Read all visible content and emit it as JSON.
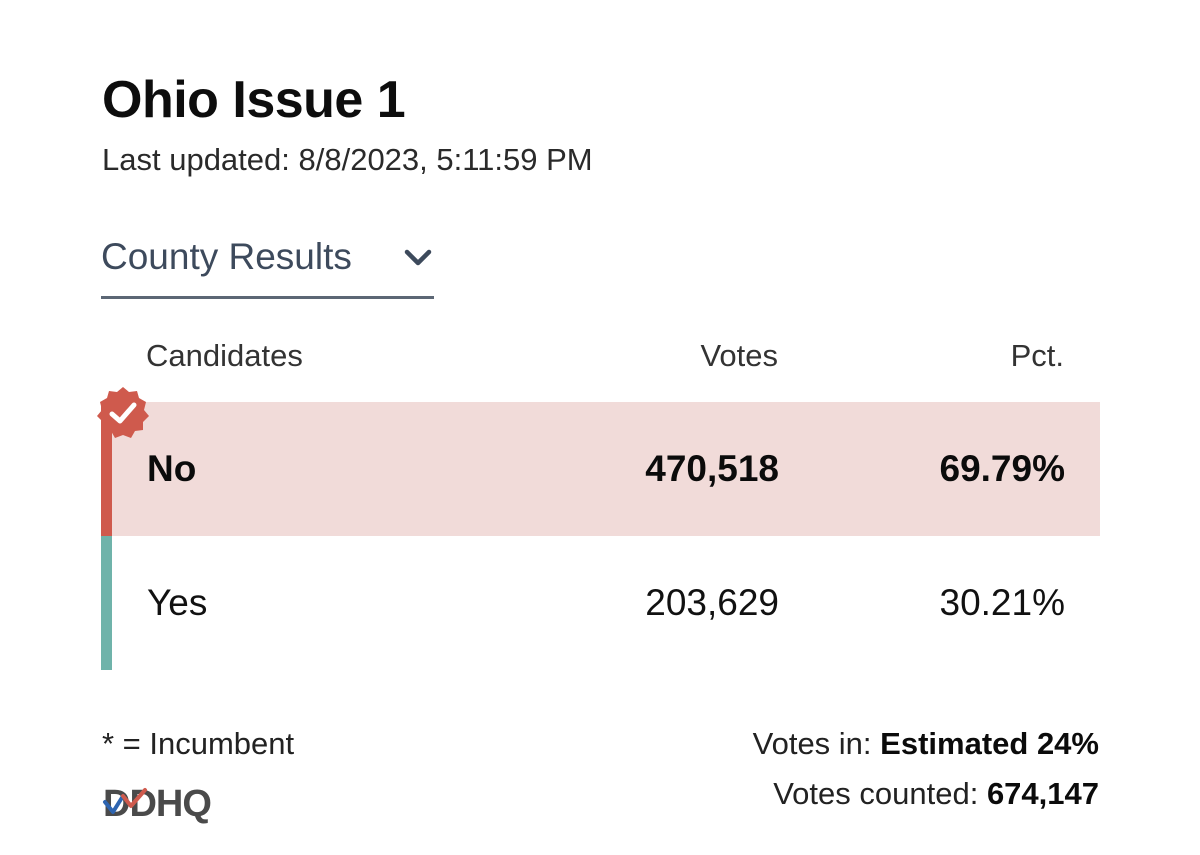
{
  "header": {
    "title": "Ohio Issue 1",
    "last_updated": "Last updated: 8/8/2023, 5:11:59 PM"
  },
  "selector": {
    "selected": "County Results",
    "icon": "chevron-down-icon"
  },
  "table": {
    "columns": [
      "Candidates",
      "Votes",
      "Pct."
    ],
    "rows": [
      {
        "name": "No",
        "votes": "470,518",
        "pct": "69.79%",
        "winner": true,
        "color": "#cf5a4d",
        "highlight": "#f1dbd9"
      },
      {
        "name": "Yes",
        "votes": "203,629",
        "pct": "30.21%",
        "winner": false,
        "color": "#6fb3aa"
      }
    ]
  },
  "footer": {
    "note": "* = Incumbent",
    "logo": "DDHQ",
    "votes_in_label": "Votes in:",
    "votes_in_value": "Estimated 24%",
    "votes_counted_label": "Votes counted:",
    "votes_counted_value": "674,147"
  }
}
